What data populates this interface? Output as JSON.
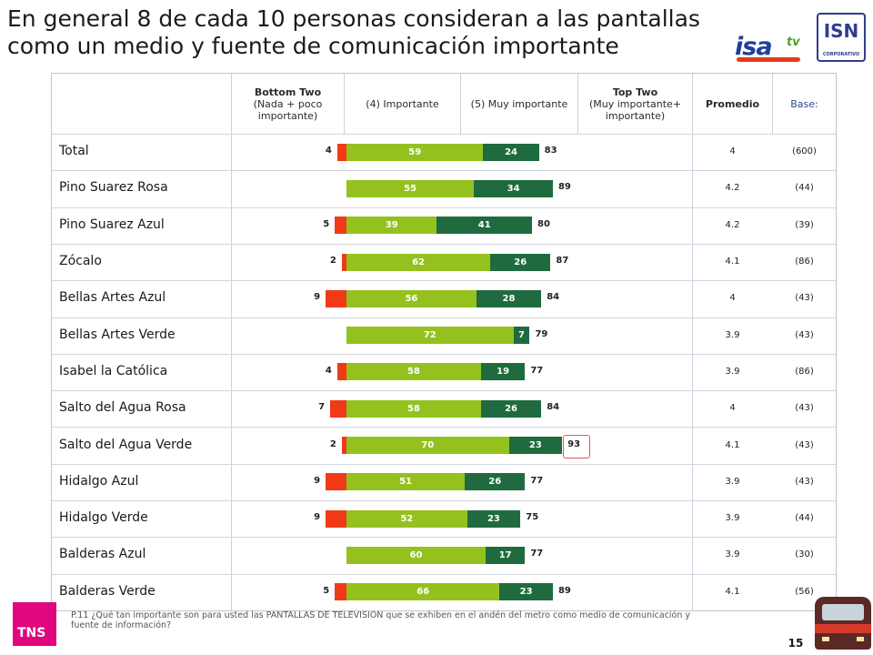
{
  "title": {
    "line1": "En general 8 de cada 10 personas consideran a las pantallas",
    "line2": "como un medio y fuente de comunicación importante"
  },
  "logos": {
    "isa_text": "isa",
    "isa_tv": "tv",
    "isn_text": "ISN",
    "isn_sub": "CORPORATIVO",
    "tns_text": "TNS"
  },
  "headers": {
    "bottom_two_title": "Bottom Two",
    "bottom_two_sub": "(Nada + poco importante)",
    "importante": "(4) Importante",
    "muy_importante": "(5) Muy importante",
    "top_two_title": "Top Two",
    "top_two_sub": "(Muy importante+ importante)",
    "promedio": "Promedio",
    "base": "Base:"
  },
  "footnote": {
    "prefix": "P.11",
    "text": "¿Qué tan importante son para usted las PANTALLAS DE TELEVISION que se exhiben en el andén del metro como medio de comunicación y fuente de información?"
  },
  "page_number": "15",
  "colors": {
    "bottom_two": "#f03a17",
    "importante": "#95c11f",
    "muy_importante": "#1f6b3f",
    "highlight": "#e05a5a"
  },
  "chart_data": {
    "type": "bar",
    "orientation": "horizontal-stacked",
    "categories": [
      "Total",
      "Pino Suarez Rosa",
      "Pino Suarez Azul",
      "Zócalo",
      "Bellas Artes Azul",
      "Bellas Artes Verde",
      "Isabel la Católica",
      "Salto del Agua Rosa",
      "Salto del Agua Verde",
      "Hidalgo Azul",
      "Hidalgo Verde",
      "Balderas Azul",
      "Balderas Verde"
    ],
    "series": [
      {
        "name": "Bottom Two",
        "values": [
          4,
          null,
          5,
          2,
          9,
          null,
          4,
          7,
          2,
          9,
          9,
          null,
          5
        ]
      },
      {
        "name": "(4) Importante",
        "values": [
          59,
          55,
          39,
          62,
          56,
          72,
          58,
          58,
          70,
          51,
          52,
          60,
          66
        ]
      },
      {
        "name": "(5) Muy importante",
        "values": [
          24,
          34,
          41,
          26,
          28,
          7,
          19,
          26,
          23,
          26,
          23,
          17,
          23
        ]
      }
    ],
    "top_two": [
      83,
      89,
      80,
      87,
      84,
      79,
      77,
      84,
      93,
      77,
      75,
      77,
      89
    ],
    "promedio": [
      "4",
      "4.2",
      "4.2",
      "4.1",
      "4",
      "3.9",
      "3.9",
      "4",
      "4.1",
      "3.9",
      "3.9",
      "3.9",
      "4.1"
    ],
    "base": [
      "(600)",
      "(44)",
      "(39)",
      "(86)",
      "(43)",
      "(43)",
      "(86)",
      "(43)",
      "(43)",
      "(43)",
      "(44)",
      "(30)",
      "(56)"
    ],
    "highlighted_top_two_index": 8,
    "grid": false
  }
}
